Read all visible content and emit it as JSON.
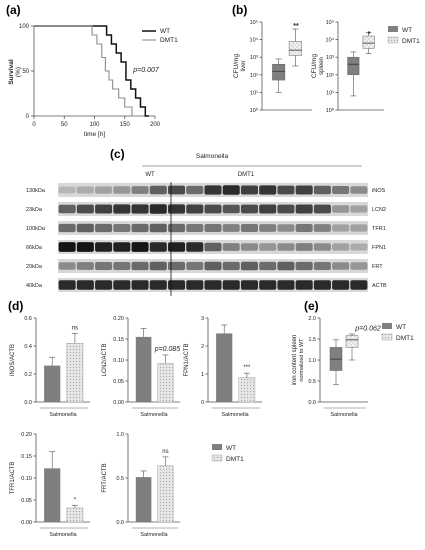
{
  "colors": {
    "wt": "#7f7f7f",
    "dmt1": "#d4d4d4",
    "axis": "#555555",
    "text": "#222222"
  },
  "panel_labels": {
    "a": "(a)",
    "b": "(b)",
    "c": "(c)",
    "d": "(d)",
    "e": "(e)"
  },
  "legend": {
    "wt": "WT",
    "dmt1": "DMT1"
  },
  "xgroup": "Salmonella",
  "chart_data": [
    {
      "panel": "a",
      "type": "line",
      "ylabel_line1": "Survival",
      "ylabel_line2": "(%)",
      "xlabel": "time [h]",
      "xlim": [
        0,
        200
      ],
      "ylim": [
        0,
        100
      ],
      "xticks": [
        "0",
        "50",
        "100",
        "150",
        "200"
      ],
      "yticks": [
        "0",
        "50",
        "100"
      ],
      "annotation": "p=0.007",
      "series": [
        {
          "name": "WT",
          "style": "step",
          "x": [
            0,
            120,
            120,
            128,
            128,
            136,
            136,
            144,
            144,
            152,
            152,
            160,
            160,
            168,
            168,
            176,
            176,
            184,
            184,
            190
          ],
          "y": [
            100,
            100,
            90,
            90,
            80,
            80,
            70,
            70,
            60,
            60,
            40,
            40,
            30,
            30,
            20,
            20,
            10,
            10,
            0,
            0
          ]
        },
        {
          "name": "DMT1",
          "style": "step",
          "x": [
            0,
            96,
            96,
            104,
            104,
            112,
            112,
            118,
            118,
            124,
            124,
            130,
            130,
            140,
            140,
            150,
            150,
            162,
            162,
            168
          ],
          "y": [
            100,
            100,
            90,
            90,
            80,
            80,
            65,
            65,
            50,
            50,
            40,
            40,
            30,
            30,
            20,
            20,
            10,
            10,
            0,
            0
          ]
        }
      ]
    },
    {
      "panel": "b-liver",
      "type": "box",
      "ylabel": "CFU/mg",
      "sublabel": "liver",
      "log_scale": true,
      "ylim_exp": [
        0,
        5
      ],
      "yticks": [
        "10⁰",
        "10¹",
        "10²",
        "10³",
        "10⁴",
        "10⁵"
      ],
      "significance": "**",
      "boxes": [
        {
          "name": "WT",
          "min": 1.0,
          "q1": 1.7,
          "median": 2.2,
          "q3": 2.6,
          "max": 2.9
        },
        {
          "name": "DMT1",
          "min": 2.5,
          "q1": 3.1,
          "median": 3.4,
          "q3": 3.9,
          "max": 4.6
        }
      ]
    },
    {
      "panel": "b-spleen",
      "type": "box",
      "ylabel": "CFU/mg",
      "sublabel": "spleen",
      "log_scale": true,
      "ylim_exp": [
        0,
        5
      ],
      "yticks": [
        "10⁰",
        "10¹",
        "10²",
        "10³",
        "10⁴",
        "10⁵"
      ],
      "significance": "*",
      "boxes": [
        {
          "name": "WT",
          "min": 0.8,
          "q1": 2.0,
          "median": 2.6,
          "q3": 3.0,
          "max": 3.3
        },
        {
          "name": "DMT1",
          "min": 3.2,
          "q1": 3.5,
          "median": 3.8,
          "q3": 4.2,
          "max": 4.4
        }
      ]
    },
    {
      "panel": "c",
      "type": "blot",
      "header": "Salmonella",
      "group_wt": "WT",
      "group_dmt1": "DMT1",
      "rows": [
        {
          "mw": "130kDa",
          "protein": "iNOS",
          "intensity": [
            0.2,
            0.25,
            0.3,
            0.35,
            0.45,
            0.6,
            0.7,
            0.55,
            0.8,
            0.85,
            0.75,
            0.8,
            0.7,
            0.75,
            0.6,
            0.5,
            0.4
          ]
        },
        {
          "mw": "23kDa",
          "protein": "LCN2",
          "intensity": [
            0.6,
            0.7,
            0.75,
            0.8,
            0.8,
            0.85,
            0.8,
            0.75,
            0.7,
            0.65,
            0.7,
            0.75,
            0.7,
            0.75,
            0.7,
            0.35,
            0.3
          ]
        },
        {
          "mw": "100kDa",
          "protein": "TFR1",
          "intensity": [
            0.55,
            0.6,
            0.55,
            0.5,
            0.55,
            0.6,
            0.55,
            0.5,
            0.5,
            0.45,
            0.5,
            0.45,
            0.4,
            0.5,
            0.45,
            0.3,
            0.3
          ]
        },
        {
          "mw": "66kDa",
          "protein": "FPN1",
          "intensity": [
            0.95,
            0.95,
            0.9,
            0.9,
            0.95,
            0.85,
            0.9,
            0.85,
            0.6,
            0.45,
            0.4,
            0.35,
            0.4,
            0.45,
            0.4,
            0.3,
            0.25
          ]
        },
        {
          "mw": "20kDa",
          "protein": "FRT",
          "intensity": [
            0.4,
            0.45,
            0.5,
            0.5,
            0.55,
            0.6,
            0.55,
            0.5,
            0.6,
            0.55,
            0.6,
            0.55,
            0.6,
            0.55,
            0.5,
            0.4,
            0.35
          ]
        },
        {
          "mw": "40kDa",
          "protein": "ACTB",
          "intensity": [
            0.85,
            0.85,
            0.85,
            0.85,
            0.85,
            0.85,
            0.85,
            0.85,
            0.85,
            0.85,
            0.85,
            0.85,
            0.85,
            0.85,
            0.85,
            0.85,
            0.85
          ]
        }
      ]
    },
    {
      "panel": "d-inos",
      "type": "bar",
      "ylabel": "iNOS/ACTB",
      "ylim": [
        0,
        0.6
      ],
      "yticks": [
        "0.0",
        "0.2",
        "0.4",
        "0.6"
      ],
      "values": [
        0.26,
        0.42
      ],
      "errors": [
        0.06,
        0.07
      ],
      "annotation": "ns"
    },
    {
      "panel": "d-lcn2",
      "type": "bar",
      "ylabel": "LCN2/ACTB",
      "ylim": [
        0,
        0.2
      ],
      "yticks": [
        "0.00",
        "0.05",
        "0.10",
        "0.15",
        "0.20"
      ],
      "values": [
        0.155,
        0.092
      ],
      "errors": [
        0.02,
        0.02
      ],
      "annotation": "p=0.085"
    },
    {
      "panel": "d-fpn1",
      "type": "bar",
      "ylabel": "FPN1/ACTB",
      "ylim": [
        0,
        3
      ],
      "yticks": [
        "0",
        "1",
        "2",
        "3"
      ],
      "values": [
        2.45,
        0.88
      ],
      "errors": [
        0.3,
        0.15
      ],
      "annotation": "***"
    },
    {
      "panel": "d-tfr1",
      "type": "bar",
      "ylabel": "TFR1/ACTB",
      "ylim": [
        0,
        0.2
      ],
      "yticks": [
        "0.00",
        "0.05",
        "0.10",
        "0.15",
        "0.20"
      ],
      "values": [
        0.122,
        0.032
      ],
      "errors": [
        0.038,
        0.006
      ],
      "annotation": "*"
    },
    {
      "panel": "d-frt",
      "type": "bar",
      "ylabel": "FRT/ACTB",
      "ylim": [
        0,
        1.0
      ],
      "yticks": [
        "0.0",
        "0.5",
        "1.0"
      ],
      "values": [
        0.51,
        0.64
      ],
      "errors": [
        0.07,
        0.1
      ],
      "annotation": "ns"
    },
    {
      "panel": "e",
      "type": "box",
      "ylabel": "iron content spleen",
      "sublabel": "normalized to WT",
      "ylim": [
        0,
        2.0
      ],
      "yticks": [
        "0.0",
        "0.5",
        "1.0",
        "1.5",
        "2.0"
      ],
      "annotation": "p=0.062",
      "boxes": [
        {
          "name": "WT",
          "min": 0.42,
          "q1": 0.75,
          "median": 1.02,
          "q3": 1.3,
          "max": 1.48
        },
        {
          "name": "DMT1",
          "min": 1.0,
          "q1": 1.3,
          "median": 1.48,
          "q3": 1.58,
          "max": 1.62
        }
      ]
    }
  ]
}
